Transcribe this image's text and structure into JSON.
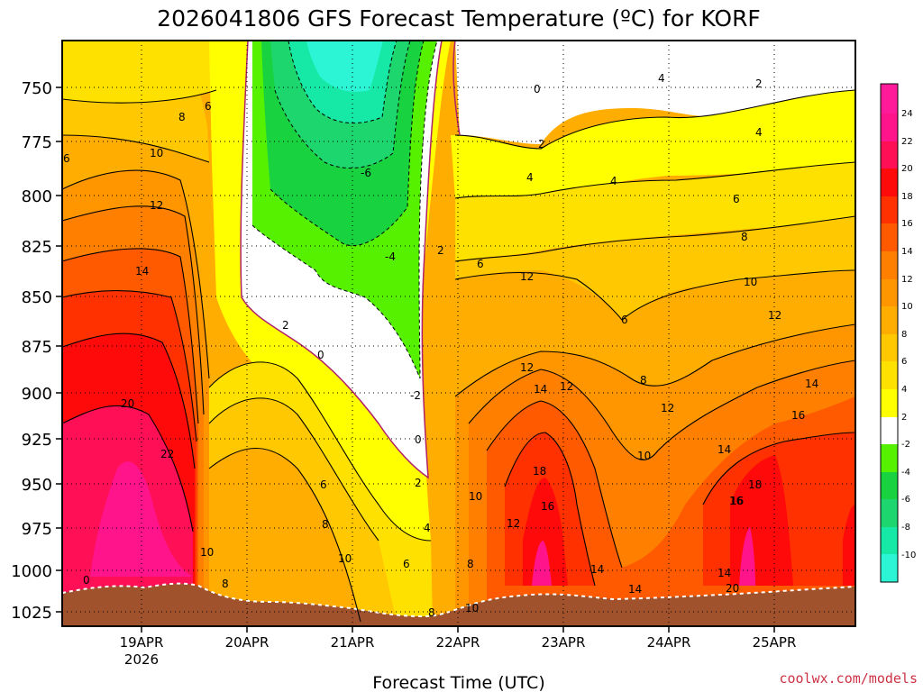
{
  "chart_data": {
    "type": "heatmap",
    "title": "2026041806 GFS Forecast Temperature (ºC) for KORF",
    "xlabel": "Forecast Time (UTC)",
    "ylabel": "",
    "credit": "coolwx.com/models",
    "x_ticks": [
      {
        "label": "19APR",
        "sublabel": "2026",
        "day": 19
      },
      {
        "label": "20APR",
        "sublabel": "",
        "day": 20
      },
      {
        "label": "21APR",
        "sublabel": "",
        "day": 21
      },
      {
        "label": "22APR",
        "sublabel": "",
        "day": 22
      },
      {
        "label": "23APR",
        "sublabel": "",
        "day": 23
      },
      {
        "label": "24APR",
        "sublabel": "",
        "day": 24
      },
      {
        "label": "25APR",
        "sublabel": "",
        "day": 25
      }
    ],
    "xlim": [
      "2026-04-18 06:00",
      "2026-04-25 18:00"
    ],
    "y_ticks": [
      750,
      775,
      800,
      825,
      850,
      875,
      900,
      925,
      950,
      975,
      1000,
      1025
    ],
    "ylim": [
      725,
      1033
    ],
    "y_inverted": true,
    "grid": true,
    "colorbar": {
      "levels": [
        -12,
        -10,
        -8,
        -6,
        -4,
        -2,
        2,
        4,
        6,
        8,
        10,
        12,
        14,
        16,
        18,
        20,
        22,
        24,
        26
      ],
      "labels": [
        24,
        22,
        20,
        18,
        16,
        14,
        12,
        10,
        8,
        6,
        4,
        2,
        -2,
        -4,
        -6,
        -8,
        -10
      ],
      "colors": [
        "#2cf5d6",
        "#16e8a6",
        "#1ed66e",
        "#18d33f",
        "#56f100",
        "#ffffff",
        "#ffff00",
        "#ffe100",
        "#ffc800",
        "#ffad00",
        "#ff9600",
        "#ff7f00",
        "#ff5a00",
        "#ff3100",
        "#ff0a0a",
        "#ff0f55",
        "#ff148c",
        "#ff1a9a"
      ],
      "placement": "right"
    },
    "terrain_color": "#a0522d",
    "contour_labels": [
      "6",
      "8",
      "6",
      "10",
      "12",
      "14",
      "20",
      "22",
      "10",
      "8",
      "2",
      "0",
      "-6",
      "-4",
      "2",
      "6",
      "8",
      "10",
      "6",
      "8",
      "10",
      "6",
      "-2",
      "0",
      "2",
      "4",
      "8",
      "10",
      "0",
      "2",
      "4",
      "4",
      "4",
      "2",
      "4",
      "6",
      "8",
      "10",
      "12",
      "14",
      "16",
      "18",
      "16",
      "14",
      "12",
      "12",
      "14",
      "12",
      "12",
      "14",
      "16",
      "18",
      "16",
      "14",
      "20",
      "14",
      "10",
      "8",
      "6",
      "12",
      "0"
    ],
    "series": [
      {
        "name": "",
        "values": [
          {
            "x": "2026-04-19 04:00",
            "p": 890,
            "t": 20
          },
          {
            "x": "2026-04-19 12:00",
            "p": 945,
            "t": 22
          },
          {
            "x": "2026-04-21 00:00",
            "p": 790,
            "t": -6
          },
          {
            "x": "2026-04-21 06:00",
            "p": 838,
            "t": -4
          },
          {
            "x": "2026-04-22 16:00",
            "p": 955,
            "t": 18
          },
          {
            "x": "2026-04-24 18:00",
            "p": 955,
            "t": 18
          }
        ]
      }
    ]
  }
}
